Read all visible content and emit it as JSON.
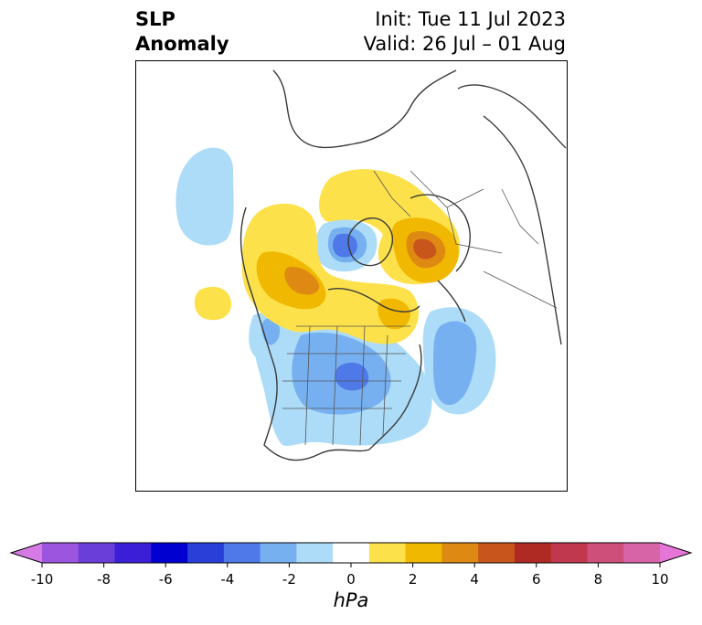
{
  "title": {
    "left_line1": "SLP",
    "left_line2": "Anomaly",
    "right_line1": "Init: Tue 11 Jul 2023",
    "right_line2": "Valid: 26 Jul – 01 Aug"
  },
  "colorbar": {
    "unit": "hPa",
    "ticks": [
      "-10",
      "-8",
      "-6",
      "-4",
      "-2",
      "0",
      "2",
      "4",
      "6",
      "8",
      "10"
    ],
    "colors": [
      "#d67ae6",
      "#9b55de",
      "#6a3ed8",
      "#3b1fd6",
      "#0000d0",
      "#2a3fd8",
      "#4f78e8",
      "#77b0f0",
      "#acdcf8",
      "#ffffff",
      "#fde14a",
      "#f0b800",
      "#de8a12",
      "#c8561c",
      "#b02a24",
      "#c0384e",
      "#cd4f7a",
      "#d864a8",
      "#e675d8"
    ]
  },
  "map": {
    "anomaly_colors": {
      "neg_1": "#acdcf8",
      "neg_2": "#77b0f0",
      "neg_3": "#4f78e8",
      "neg_4": "#2a3fd8",
      "pos_1": "#fde14a",
      "pos_2": "#f0b800",
      "pos_3": "#de8a12",
      "pos_4": "#c8561c"
    }
  }
}
